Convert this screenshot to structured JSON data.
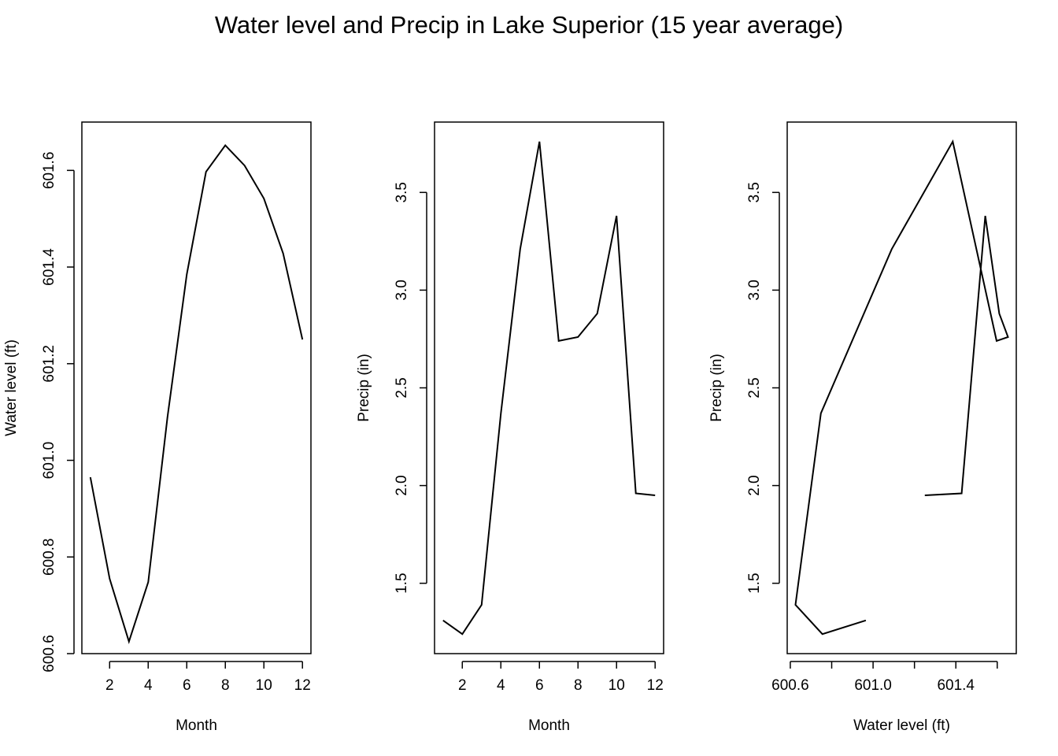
{
  "title": "Water level and Precip in Lake Superior (15 year average)",
  "chart_data": [
    {
      "type": "line",
      "xlabel": "Month",
      "ylabel": "Water level (ft)",
      "x": [
        1,
        2,
        3,
        4,
        5,
        6,
        7,
        8,
        9,
        10,
        11,
        12
      ],
      "y": [
        600.965,
        600.755,
        600.625,
        600.748,
        601.09,
        601.385,
        601.597,
        601.652,
        601.61,
        601.542,
        601.428,
        601.25
      ],
      "xlim": [
        0.56,
        12.44
      ],
      "ylim": [
        600.6,
        601.7
      ],
      "xticks": [
        2,
        4,
        6,
        8,
        10,
        12
      ],
      "xtick_labels": [
        "2",
        "4",
        "6",
        "8",
        "10",
        "12"
      ],
      "yticks": [
        600.6,
        600.8,
        601.0,
        601.2,
        601.4,
        601.6
      ],
      "ytick_labels": [
        "600.6",
        "600.8",
        "601.0",
        "601.2",
        "601.4",
        "601.6"
      ]
    },
    {
      "type": "line",
      "xlabel": "Month",
      "ylabel": "Precip (in)",
      "x": [
        1,
        2,
        3,
        4,
        5,
        6,
        7,
        8,
        9,
        10,
        11,
        12
      ],
      "y": [
        1.31,
        1.24,
        1.39,
        2.37,
        3.21,
        3.76,
        2.74,
        2.76,
        2.88,
        3.38,
        1.96,
        1.95
      ],
      "xlim": [
        0.56,
        12.44
      ],
      "ylim": [
        1.14,
        3.86
      ],
      "xticks": [
        2,
        4,
        6,
        8,
        10,
        12
      ],
      "xtick_labels": [
        "2",
        "4",
        "6",
        "8",
        "10",
        "12"
      ],
      "yticks": [
        1.5,
        2.0,
        2.5,
        3.0,
        3.5
      ],
      "ytick_labels": [
        "1.5",
        "2.0",
        "2.5",
        "3.0",
        "3.5"
      ]
    },
    {
      "type": "line",
      "xlabel": "Water level (ft)",
      "ylabel": "Precip (in)",
      "x": [
        600.965,
        600.755,
        600.625,
        600.748,
        601.09,
        601.385,
        601.597,
        601.652,
        601.61,
        601.542,
        601.428,
        601.25
      ],
      "y": [
        1.31,
        1.24,
        1.39,
        2.37,
        3.21,
        3.76,
        2.74,
        2.76,
        2.88,
        3.38,
        1.96,
        1.95
      ],
      "xlim": [
        600.585,
        601.692
      ],
      "ylim": [
        1.14,
        3.86
      ],
      "xticks": [
        600.6,
        600.8,
        601.0,
        601.2,
        601.4,
        601.6
      ],
      "xtick_labels": [
        "600.6",
        "",
        "601.0",
        "",
        "601.4",
        ""
      ],
      "yticks": [
        1.5,
        2.0,
        2.5,
        3.0,
        3.5
      ],
      "ytick_labels": [
        "1.5",
        "2.0",
        "2.5",
        "3.0",
        "3.5"
      ]
    }
  ]
}
